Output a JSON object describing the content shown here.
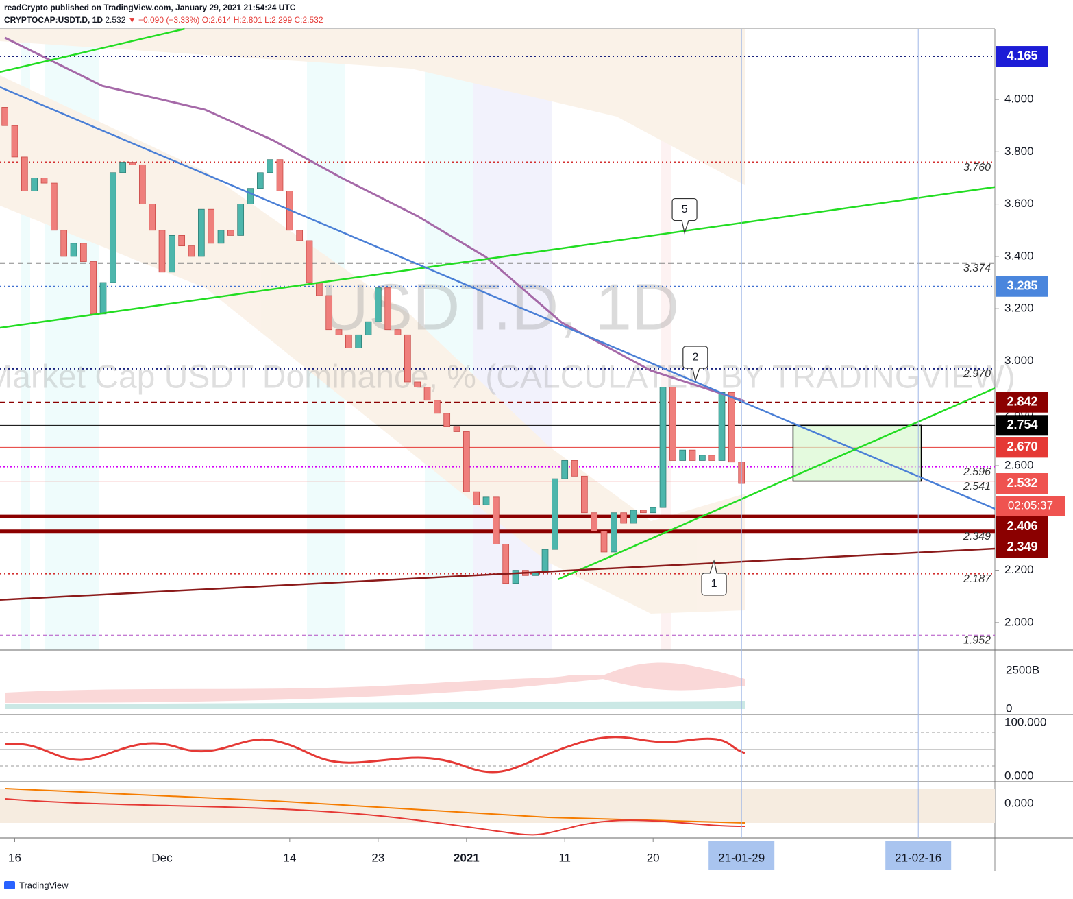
{
  "header": {
    "author_line": "readCrypto published on TradingView.com, January 29, 2021 21:54:24 UTC",
    "symbol": "CRYPTOCAP:USDT.D, 1D",
    "last": "2.532",
    "change": "▼ −0.090 (−3.33%)",
    "ohlc": "O:2.614 H:2.801 L:2.299 C:2.532"
  },
  "chart_data": {
    "type": "candlestick",
    "watermark_symbol": "USDT.D, 1D",
    "watermark_name": "Market Cap USDT Dominance, % (CALCULATED BY TRADINGVIEW)",
    "open": [
      3.97,
      3.9,
      3.78,
      3.65,
      3.7,
      3.68,
      3.5,
      3.4,
      3.45,
      3.38,
      3.18,
      3.3,
      3.72,
      3.76,
      3.75,
      3.6,
      3.5,
      3.34,
      3.48,
      3.44,
      3.4,
      3.58,
      3.45,
      3.5,
      3.48,
      3.6,
      3.66,
      3.72,
      3.77,
      3.65,
      3.5,
      3.46,
      3.3,
      3.25,
      3.12,
      3.1,
      3.05,
      3.1,
      3.15,
      3.28,
      3.12,
      3.1,
      2.92,
      2.9,
      2.85,
      2.8,
      2.75,
      2.73,
      2.5,
      2.45,
      2.48,
      2.3,
      2.15,
      2.2,
      2.18,
      2.19,
      2.28,
      2.55,
      2.62,
      2.56,
      2.42,
      2.35,
      2.27,
      2.42,
      2.38,
      2.43,
      2.42,
      2.44,
      2.9,
      2.62,
      2.66,
      2.62,
      2.64,
      2.62,
      2.88,
      2.614
    ],
    "close": [
      3.9,
      3.78,
      3.65,
      3.7,
      3.68,
      3.5,
      3.4,
      3.45,
      3.38,
      3.18,
      3.3,
      3.72,
      3.76,
      3.75,
      3.6,
      3.5,
      3.34,
      3.48,
      3.44,
      3.4,
      3.58,
      3.45,
      3.5,
      3.48,
      3.6,
      3.66,
      3.72,
      3.77,
      3.65,
      3.5,
      3.46,
      3.3,
      3.25,
      3.12,
      3.1,
      3.05,
      3.1,
      3.15,
      3.28,
      3.12,
      3.1,
      2.92,
      2.9,
      2.85,
      2.8,
      2.75,
      2.73,
      2.5,
      2.45,
      2.48,
      2.3,
      2.15,
      2.2,
      2.18,
      2.19,
      2.28,
      2.55,
      2.62,
      2.56,
      2.42,
      2.35,
      2.27,
      2.42,
      2.38,
      2.43,
      2.42,
      2.44,
      2.9,
      2.62,
      2.66,
      2.62,
      2.64,
      2.62,
      2.88,
      2.614,
      2.532
    ],
    "colors": {
      "up": "#4db6ac",
      "down": "#ef7f7c"
    },
    "xlim": [
      -0.5,
      100.8
    ],
    "xticks": [
      {
        "value": 1,
        "label": "16"
      },
      {
        "value": 16,
        "label": "Dec"
      },
      {
        "value": 29,
        "label": "14"
      },
      {
        "value": 38,
        "label": "23"
      },
      {
        "value": 47,
        "label": "2021"
      },
      {
        "value": 57,
        "label": "11"
      },
      {
        "value": 66,
        "label": "20"
      },
      {
        "value": 75,
        "label": "21-01-29",
        "highlight": true
      },
      {
        "value": 93,
        "label": "21-02-16",
        "highlight": true
      }
    ],
    "ylim": [
      1.895,
      4.27
    ],
    "yticks": [
      {
        "value": 2,
        "label": "2.000"
      },
      {
        "value": 2.2,
        "label": "2.200"
      },
      {
        "value": 2.4,
        "label": "2.400"
      },
      {
        "value": 2.6,
        "label": "2.600"
      },
      {
        "value": 2.8,
        "label": "2.800"
      },
      {
        "value": 3,
        "label": "3.000"
      },
      {
        "value": 3.2,
        "label": "3.200"
      },
      {
        "value": 3.4,
        "label": "3.400"
      },
      {
        "value": 3.6,
        "label": "3.600"
      },
      {
        "value": 3.8,
        "label": "3.800"
      },
      {
        "value": 4,
        "label": "4.000"
      }
    ],
    "levels": [
      {
        "value": 4.165,
        "color": "#1a237e",
        "dash": "2 4",
        "width": 2
      },
      {
        "value": 3.76,
        "label": "3.760",
        "color": "#d32f2f",
        "dash": "2 4",
        "width": 2
      },
      {
        "value": 3.374,
        "label": "3.374",
        "color": "#888888",
        "dash": "8 5",
        "width": 2
      },
      {
        "value": 3.285,
        "color": "#3f6fd1",
        "dash": "2 4",
        "width": 2
      },
      {
        "value": 2.97,
        "label": "2.970",
        "color": "#1a237e",
        "dash": "2 4",
        "width": 2
      },
      {
        "value": 2.842,
        "color": "#8b0000",
        "dash": "8 5",
        "width": 2
      },
      {
        "value": 2.754,
        "color": "#000000",
        "dash": "",
        "width": 1
      },
      {
        "value": 2.67,
        "color": "#e53935",
        "dash": "",
        "width": 1
      },
      {
        "value": 2.596,
        "label": "2.596",
        "color": "#d500f9",
        "dash": "2 3",
        "width": 2
      },
      {
        "value": 2.541,
        "label": "2.541",
        "color": "#e53935",
        "dash": "",
        "width": 1
      },
      {
        "value": 2.406,
        "color": "#8b0000",
        "dash": "",
        "width": 5
      },
      {
        "value": 2.349,
        "label": "2.349",
        "color": "#8b0000",
        "dash": "",
        "width": 5
      },
      {
        "value": 2.187,
        "label": "2.187",
        "color": "#d32f2f",
        "dash": "2 4",
        "width": 2
      },
      {
        "value": 1.952,
        "label": "1.952",
        "color": "#b04fc4",
        "dash": "5 4",
        "width": 1
      }
    ],
    "tags": [
      {
        "value": 4.165,
        "label": "4.165",
        "bg": "#1c1cd6"
      },
      {
        "value": 3.285,
        "label": "3.285",
        "bg": "#4a86dd"
      },
      {
        "value": 2.842,
        "label": "2.842",
        "bg": "#8b0000"
      },
      {
        "value": 2.754,
        "label": "2.754",
        "bg": "#000000"
      },
      {
        "value": 2.67,
        "label": "2.670",
        "bg": "#e53935"
      },
      {
        "value": 2.532,
        "label": "2.532",
        "bg": "#ef5350",
        "countdown": "02:05:37"
      },
      {
        "value": 2.406,
        "label": "2.406",
        "bg": "#8b0000"
      },
      {
        "value": 2.349,
        "label": "2.349",
        "bg": "#8b0000"
      }
    ],
    "trendlines": [
      {
        "color": "#22dd22",
        "x": [
          -0.5,
          18.3
        ],
        "values": [
          4.105,
          4.27
        ]
      },
      {
        "color": "#22dd22",
        "x": [
          -0.5,
          100.8
        ],
        "values": [
          3.127,
          3.665
        ]
      },
      {
        "color": "#4a7fd6",
        "x": [
          -0.5,
          100.8
        ],
        "values": [
          4.047,
          2.435
        ]
      },
      {
        "color": "#22dd22",
        "x": [
          56.3,
          100.8
        ],
        "values": [
          2.165,
          2.896
        ]
      },
      {
        "color": "#8b1a1a",
        "x": [
          -0.5,
          100.8
        ],
        "values": [
          2.087,
          2.283
        ]
      }
    ],
    "ma": {
      "color": "#a569a8",
      "x": [
        0,
        9.91,
        20.38,
        27.35,
        34.33,
        42.01,
        48.99,
        56.66,
        65.74,
        75.3
      ],
      "values": [
        4.236,
        4.052,
        3.961,
        3.843,
        3.699,
        3.554,
        3.397,
        3.148,
        2.964,
        2.847
      ]
    },
    "box": {
      "x": [
        80.25,
        93.3
      ],
      "values": [
        2.541,
        2.754
      ]
    },
    "callouts": [
      {
        "label": "5",
        "x": 69.2,
        "value": 3.49,
        "dir": "down"
      },
      {
        "label": "2",
        "x": 70.3,
        "value": 2.925,
        "dir": "down"
      },
      {
        "label": "1",
        "x": 72.2,
        "value": 2.236,
        "dir": "up"
      }
    ]
  },
  "panes": {
    "volume_ticks": [
      "2500B",
      "0"
    ],
    "osc_ticks": [
      "100.000",
      "0.000"
    ],
    "third_ticks": [
      "0.000"
    ]
  },
  "footer": "TradingView"
}
